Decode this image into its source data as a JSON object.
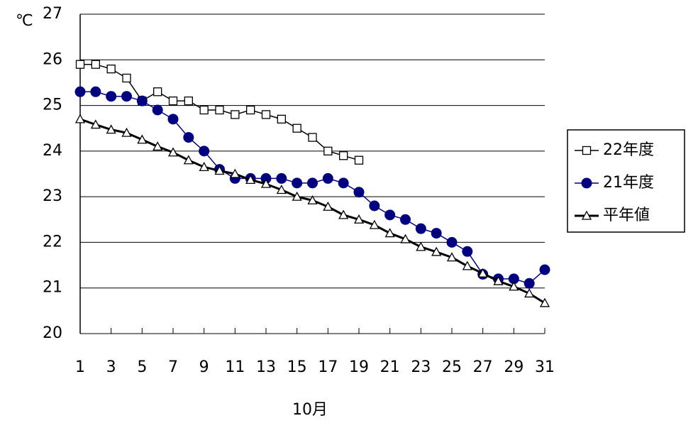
{
  "chart_data": {
    "type": "line",
    "y_label": "℃",
    "x_label": "10月",
    "x": [
      1,
      2,
      3,
      4,
      5,
      6,
      7,
      8,
      9,
      10,
      11,
      12,
      13,
      14,
      15,
      16,
      17,
      18,
      19,
      20,
      21,
      22,
      23,
      24,
      25,
      26,
      27,
      28,
      29,
      30,
      31
    ],
    "xlim": [
      1,
      31
    ],
    "xticks": [
      1,
      3,
      5,
      7,
      9,
      11,
      13,
      15,
      17,
      19,
      21,
      23,
      25,
      27,
      29,
      31
    ],
    "ylim": [
      20,
      27
    ],
    "yticks": [
      20,
      21,
      22,
      23,
      24,
      25,
      26,
      27
    ],
    "grid": true,
    "series": [
      {
        "name": "22年度",
        "color": "#000000",
        "marker": "square",
        "values": [
          25.9,
          25.9,
          25.8,
          25.6,
          25.1,
          25.3,
          25.1,
          25.1,
          24.9,
          24.9,
          24.8,
          24.9,
          24.8,
          24.7,
          24.5,
          24.3,
          24.0,
          23.9,
          23.8,
          null,
          null,
          null,
          null,
          null,
          null,
          null,
          null,
          null,
          null,
          null,
          null
        ]
      },
      {
        "name": "21年度",
        "color": "#000080",
        "marker": "circle",
        "values": [
          25.3,
          25.3,
          25.2,
          25.2,
          25.1,
          24.9,
          24.7,
          24.3,
          24.0,
          23.6,
          23.4,
          23.4,
          23.4,
          23.4,
          23.3,
          23.3,
          23.4,
          23.3,
          23.1,
          22.8,
          22.6,
          22.5,
          22.3,
          22.2,
          22.0,
          21.8,
          21.3,
          21.2,
          21.2,
          21.1,
          21.4
        ]
      },
      {
        "name": "平年値",
        "color": "#000000",
        "marker": "triangle",
        "values": [
          24.7,
          24.58,
          24.47,
          24.4,
          24.25,
          24.1,
          23.97,
          23.8,
          23.65,
          23.57,
          23.5,
          23.37,
          23.28,
          23.15,
          23.0,
          22.92,
          22.78,
          22.6,
          22.5,
          22.38,
          22.2,
          22.07,
          21.9,
          21.79,
          21.67,
          21.48,
          21.32,
          21.15,
          21.03,
          20.88,
          20.67
        ]
      }
    ]
  }
}
